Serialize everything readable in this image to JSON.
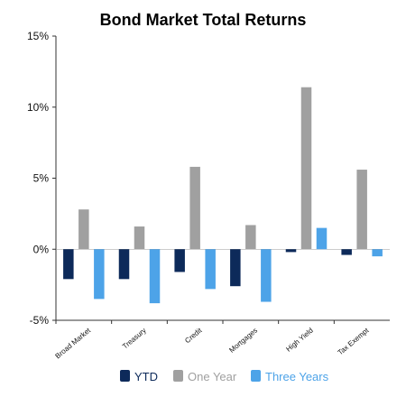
{
  "chart_data": {
    "type": "bar",
    "title": "Bond Market Total Returns",
    "categories": [
      "Broad Market",
      "Treasury",
      "Credit",
      "Mortgages",
      "High Yield",
      "Tax Exempt"
    ],
    "series": [
      {
        "name": "YTD",
        "color": "#0d2a5a",
        "values": [
          -2.1,
          -2.1,
          -1.6,
          -2.6,
          -0.2,
          -0.4
        ]
      },
      {
        "name": "One Year",
        "color": "#a0a0a0",
        "values": [
          2.8,
          1.6,
          5.8,
          1.7,
          11.4,
          5.6
        ]
      },
      {
        "name": "Three Years",
        "color": "#4da3e8",
        "values": [
          -3.5,
          -3.8,
          -2.8,
          -3.7,
          1.5,
          -0.5
        ]
      }
    ],
    "ylim": [
      -5,
      15
    ],
    "yticks": [
      "-5%",
      "0%",
      "5%",
      "10%",
      "15%"
    ],
    "ytick_values": [
      -5,
      0,
      5,
      10,
      15
    ],
    "legend_position": "bottom",
    "grid": false
  }
}
